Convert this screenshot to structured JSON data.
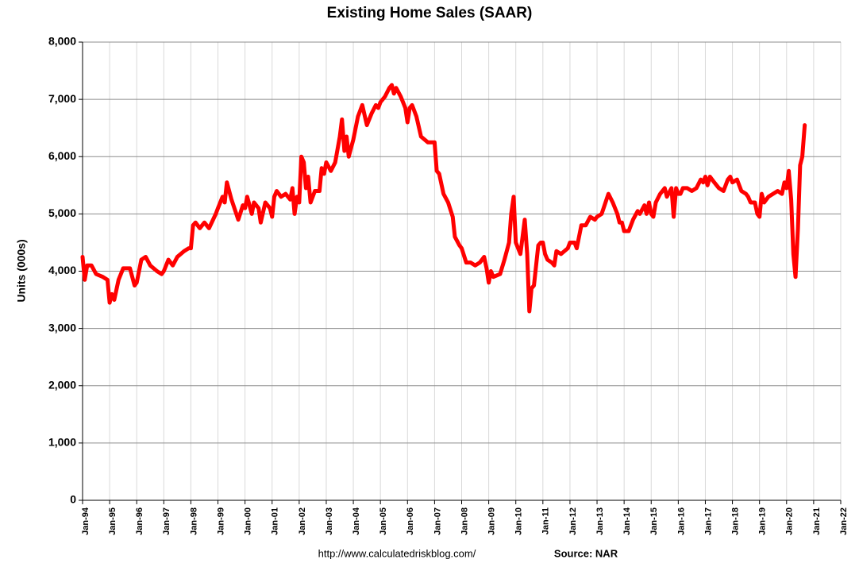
{
  "chart_data": {
    "type": "line",
    "title": "Existing Home Sales (SAAR)",
    "y_label": "Units (000s)",
    "notes": [
      "http://www.calculatedriskblog.com/",
      "Source: NAR"
    ],
    "color": "#ff0000",
    "grid": true,
    "xlim": [
      1994,
      2022
    ],
    "xticks": [
      {
        "value": 1994,
        "label": "Jan-94"
      },
      {
        "value": 1995,
        "label": "Jan-95"
      },
      {
        "value": 1996,
        "label": "Jan-96"
      },
      {
        "value": 1997,
        "label": "Jan-97"
      },
      {
        "value": 1998,
        "label": "Jan-98"
      },
      {
        "value": 1999,
        "label": "Jan-99"
      },
      {
        "value": 2000,
        "label": "Jan-00"
      },
      {
        "value": 2001,
        "label": "Jan-01"
      },
      {
        "value": 2002,
        "label": "Jan-02"
      },
      {
        "value": 2003,
        "label": "Jan-03"
      },
      {
        "value": 2004,
        "label": "Jan-04"
      },
      {
        "value": 2005,
        "label": "Jan-05"
      },
      {
        "value": 2006,
        "label": "Jan-06"
      },
      {
        "value": 2007,
        "label": "Jan-07"
      },
      {
        "value": 2008,
        "label": "Jan-08"
      },
      {
        "value": 2009,
        "label": "Jan-09"
      },
      {
        "value": 2010,
        "label": "Jan-10"
      },
      {
        "value": 2011,
        "label": "Jan-11"
      },
      {
        "value": 2012,
        "label": "Jan-12"
      },
      {
        "value": 2013,
        "label": "Jan-13"
      },
      {
        "value": 2014,
        "label": "Jan-14"
      },
      {
        "value": 2015,
        "label": "Jan-15"
      },
      {
        "value": 2016,
        "label": "Jan-16"
      },
      {
        "value": 2017,
        "label": "Jan-17"
      },
      {
        "value": 2018,
        "label": "Jan-18"
      },
      {
        "value": 2019,
        "label": "Jan-19"
      },
      {
        "value": 2020,
        "label": "Jan-20"
      },
      {
        "value": 2021,
        "label": "Jan-21"
      },
      {
        "value": 2022,
        "label": "Jan-22"
      }
    ],
    "ylim": [
      0,
      8000
    ],
    "yticks": [
      0,
      {
        "value": 1000,
        "label": "1,000"
      },
      {
        "value": 2000,
        "label": "2,000"
      },
      {
        "value": 3000,
        "label": "3,000"
      },
      {
        "value": 4000,
        "label": "4,000"
      },
      {
        "value": 5000,
        "label": "5,000"
      },
      {
        "value": 6000,
        "label": "6,000"
      },
      {
        "value": 7000,
        "label": "7,000"
      },
      {
        "value": 8000,
        "label": "8,000"
      }
    ],
    "x": [
      1994.0,
      1994.08,
      1994.17,
      1994.33,
      1994.5,
      1994.75,
      1994.92,
      1995.0,
      1995.08,
      1995.17,
      1995.33,
      1995.5,
      1995.75,
      1995.92,
      1996.0,
      1996.17,
      1996.33,
      1996.5,
      1996.75,
      1996.92,
      1997.0,
      1997.17,
      1997.33,
      1997.5,
      1997.75,
      1997.92,
      1998.0,
      1998.08,
      1998.17,
      1998.33,
      1998.5,
      1998.67,
      1998.92,
      1999.0,
      1999.17,
      1999.25,
      1999.33,
      1999.5,
      1999.75,
      1999.92,
      2000.0,
      2000.08,
      2000.25,
      2000.33,
      2000.5,
      2000.58,
      2000.75,
      2000.92,
      2001.0,
      2001.08,
      2001.17,
      2001.33,
      2001.5,
      2001.67,
      2001.75,
      2001.83,
      2001.92,
      2002.0,
      2002.08,
      2002.17,
      2002.25,
      2002.33,
      2002.42,
      2002.58,
      2002.75,
      2002.83,
      2002.92,
      2003.0,
      2003.17,
      2003.33,
      2003.5,
      2003.58,
      2003.67,
      2003.75,
      2003.83,
      2004.0,
      2004.17,
      2004.33,
      2004.5,
      2004.67,
      2004.83,
      2004.92,
      2005.0,
      2005.17,
      2005.33,
      2005.42,
      2005.5,
      2005.58,
      2005.75,
      2005.92,
      2006.0,
      2006.08,
      2006.17,
      2006.33,
      2006.5,
      2006.75,
      2006.92,
      2007.0,
      2007.08,
      2007.17,
      2007.33,
      2007.5,
      2007.67,
      2007.75,
      2007.92,
      2008.0,
      2008.17,
      2008.33,
      2008.5,
      2008.67,
      2008.83,
      2008.92,
      2009.0,
      2009.08,
      2009.17,
      2009.42,
      2009.58,
      2009.75,
      2009.83,
      2009.92,
      2010.0,
      2010.17,
      2010.33,
      2010.42,
      2010.5,
      2010.58,
      2010.67,
      2010.83,
      2010.92,
      2011.0,
      2011.08,
      2011.17,
      2011.33,
      2011.42,
      2011.5,
      2011.67,
      2011.92,
      2012.0,
      2012.17,
      2012.25,
      2012.42,
      2012.58,
      2012.75,
      2012.92,
      2013.0,
      2013.17,
      2013.42,
      2013.58,
      2013.75,
      2013.83,
      2013.92,
      2014.0,
      2014.17,
      2014.33,
      2014.5,
      2014.58,
      2014.75,
      2014.83,
      2014.92,
      2015.0,
      2015.08,
      2015.17,
      2015.33,
      2015.5,
      2015.58,
      2015.75,
      2015.83,
      2015.92,
      2016.0,
      2016.08,
      2016.17,
      2016.33,
      2016.5,
      2016.67,
      2016.83,
      2016.92,
      2017.0,
      2017.08,
      2017.17,
      2017.33,
      2017.5,
      2017.67,
      2017.83,
      2017.92,
      2018.0,
      2018.17,
      2018.33,
      2018.5,
      2018.58,
      2018.67,
      2018.83,
      2018.92,
      2019.0,
      2019.08,
      2019.17,
      2019.33,
      2019.5,
      2019.67,
      2019.83,
      2019.92,
      2020.0,
      2020.08,
      2020.17,
      2020.25,
      2020.33,
      2020.42,
      2020.5,
      2020.58,
      2020.67
    ],
    "values": [
      4250,
      3850,
      4100,
      4100,
      3950,
      3900,
      3850,
      3450,
      3600,
      3500,
      3850,
      4050,
      4050,
      3750,
      3800,
      4200,
      4250,
      4100,
      4000,
      3950,
      4000,
      4200,
      4100,
      4250,
      4350,
      4400,
      4400,
      4800,
      4850,
      4750,
      4850,
      4750,
      5000,
      5100,
      5300,
      5200,
      5550,
      5250,
      4900,
      5150,
      5100,
      5300,
      5000,
      5200,
      5100,
      4850,
      5200,
      5100,
      4950,
      5300,
      5400,
      5300,
      5350,
      5250,
      5450,
      5000,
      5300,
      5200,
      6000,
      5900,
      5450,
      5650,
      5200,
      5400,
      5400,
      5800,
      5700,
      5900,
      5750,
      5900,
      6350,
      6650,
      6100,
      6350,
      6000,
      6300,
      6700,
      6900,
      6550,
      6750,
      6900,
      6850,
      6950,
      7050,
      7200,
      7250,
      7100,
      7200,
      7050,
      6850,
      6600,
      6850,
      6900,
      6700,
      6350,
      6250,
      6250,
      6250,
      5750,
      5700,
      5350,
      5200,
      4950,
      4600,
      4450,
      4400,
      4150,
      4150,
      4100,
      4150,
      4250,
      4050,
      3800,
      4000,
      3900,
      3950,
      4200,
      4500,
      5000,
      5300,
      4500,
      4300,
      4900,
      4300,
      3300,
      3700,
      3750,
      4450,
      4500,
      4500,
      4300,
      4200,
      4150,
      4100,
      4350,
      4300,
      4400,
      4500,
      4500,
      4400,
      4800,
      4800,
      4950,
      4900,
      4950,
      5000,
      5350,
      5200,
      5000,
      4850,
      4850,
      4700,
      4700,
      4900,
      5050,
      5000,
      5150,
      5000,
      5200,
      5000,
      4950,
      5200,
      5350,
      5450,
      5300,
      5450,
      4950,
      5450,
      5350,
      5350,
      5450,
      5450,
      5400,
      5450,
      5600,
      5550,
      5650,
      5500,
      5650,
      5550,
      5450,
      5400,
      5600,
      5650,
      5550,
      5600,
      5400,
      5350,
      5300,
      5200,
      5200,
      5000,
      4950,
      5350,
      5200,
      5300,
      5350,
      5400,
      5350,
      5550,
      5450,
      5750,
      5250,
      4300,
      3900,
      4750,
      5850,
      6000,
      6550
    ]
  }
}
